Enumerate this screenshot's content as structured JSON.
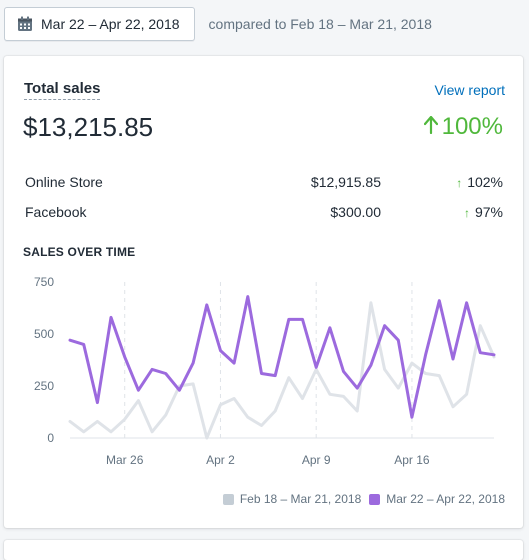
{
  "header": {
    "date_range": "Mar 22 – Apr 22, 2018",
    "compared_text": "compared to Feb 18 – Mar 21, 2018",
    "calendar_icon": "calendar-icon"
  },
  "card": {
    "title": "Total sales",
    "view_report": "View report",
    "total": "$13,215.85",
    "total_change": "100%",
    "arrow_icon": "arrow-up-icon",
    "positive_color": "#50b83c",
    "rows": [
      {
        "name": "Online Store",
        "amount": "$12,915.85",
        "change": "102%"
      },
      {
        "name": "Facebook",
        "amount": "$300.00",
        "change": "97%"
      }
    ],
    "section_label": "SALES OVER TIME"
  },
  "chart_data": {
    "type": "line",
    "title": "",
    "xlabel": "",
    "ylabel": "",
    "ylim": [
      0,
      750
    ],
    "y_ticks": [
      "750",
      "500",
      "250",
      "0"
    ],
    "x_ticks": [
      {
        "label": "Mar 26",
        "index": 4
      },
      {
        "label": "Apr 2",
        "index": 11
      },
      {
        "label": "Apr 9",
        "index": 18
      },
      {
        "label": "Apr 16",
        "index": 25
      }
    ],
    "series": [
      {
        "name": "Feb 18 – Mar 21, 2018",
        "color": "#dfe3e8",
        "values": [
          80,
          30,
          80,
          30,
          90,
          180,
          30,
          110,
          250,
          260,
          0,
          160,
          190,
          100,
          60,
          130,
          290,
          190,
          330,
          210,
          200,
          130,
          650,
          330,
          240,
          360,
          310,
          300,
          150,
          210,
          540,
          390
        ]
      },
      {
        "name": "Mar 22 – Apr 22, 2018",
        "color": "#9c6ade",
        "values": [
          470,
          450,
          170,
          580,
          390,
          230,
          330,
          310,
          230,
          360,
          640,
          420,
          360,
          680,
          310,
          300,
          570,
          570,
          340,
          530,
          320,
          240,
          350,
          540,
          470,
          100,
          400,
          660,
          380,
          650,
          410,
          400
        ]
      }
    ],
    "legend_position": "bottom-right"
  }
}
